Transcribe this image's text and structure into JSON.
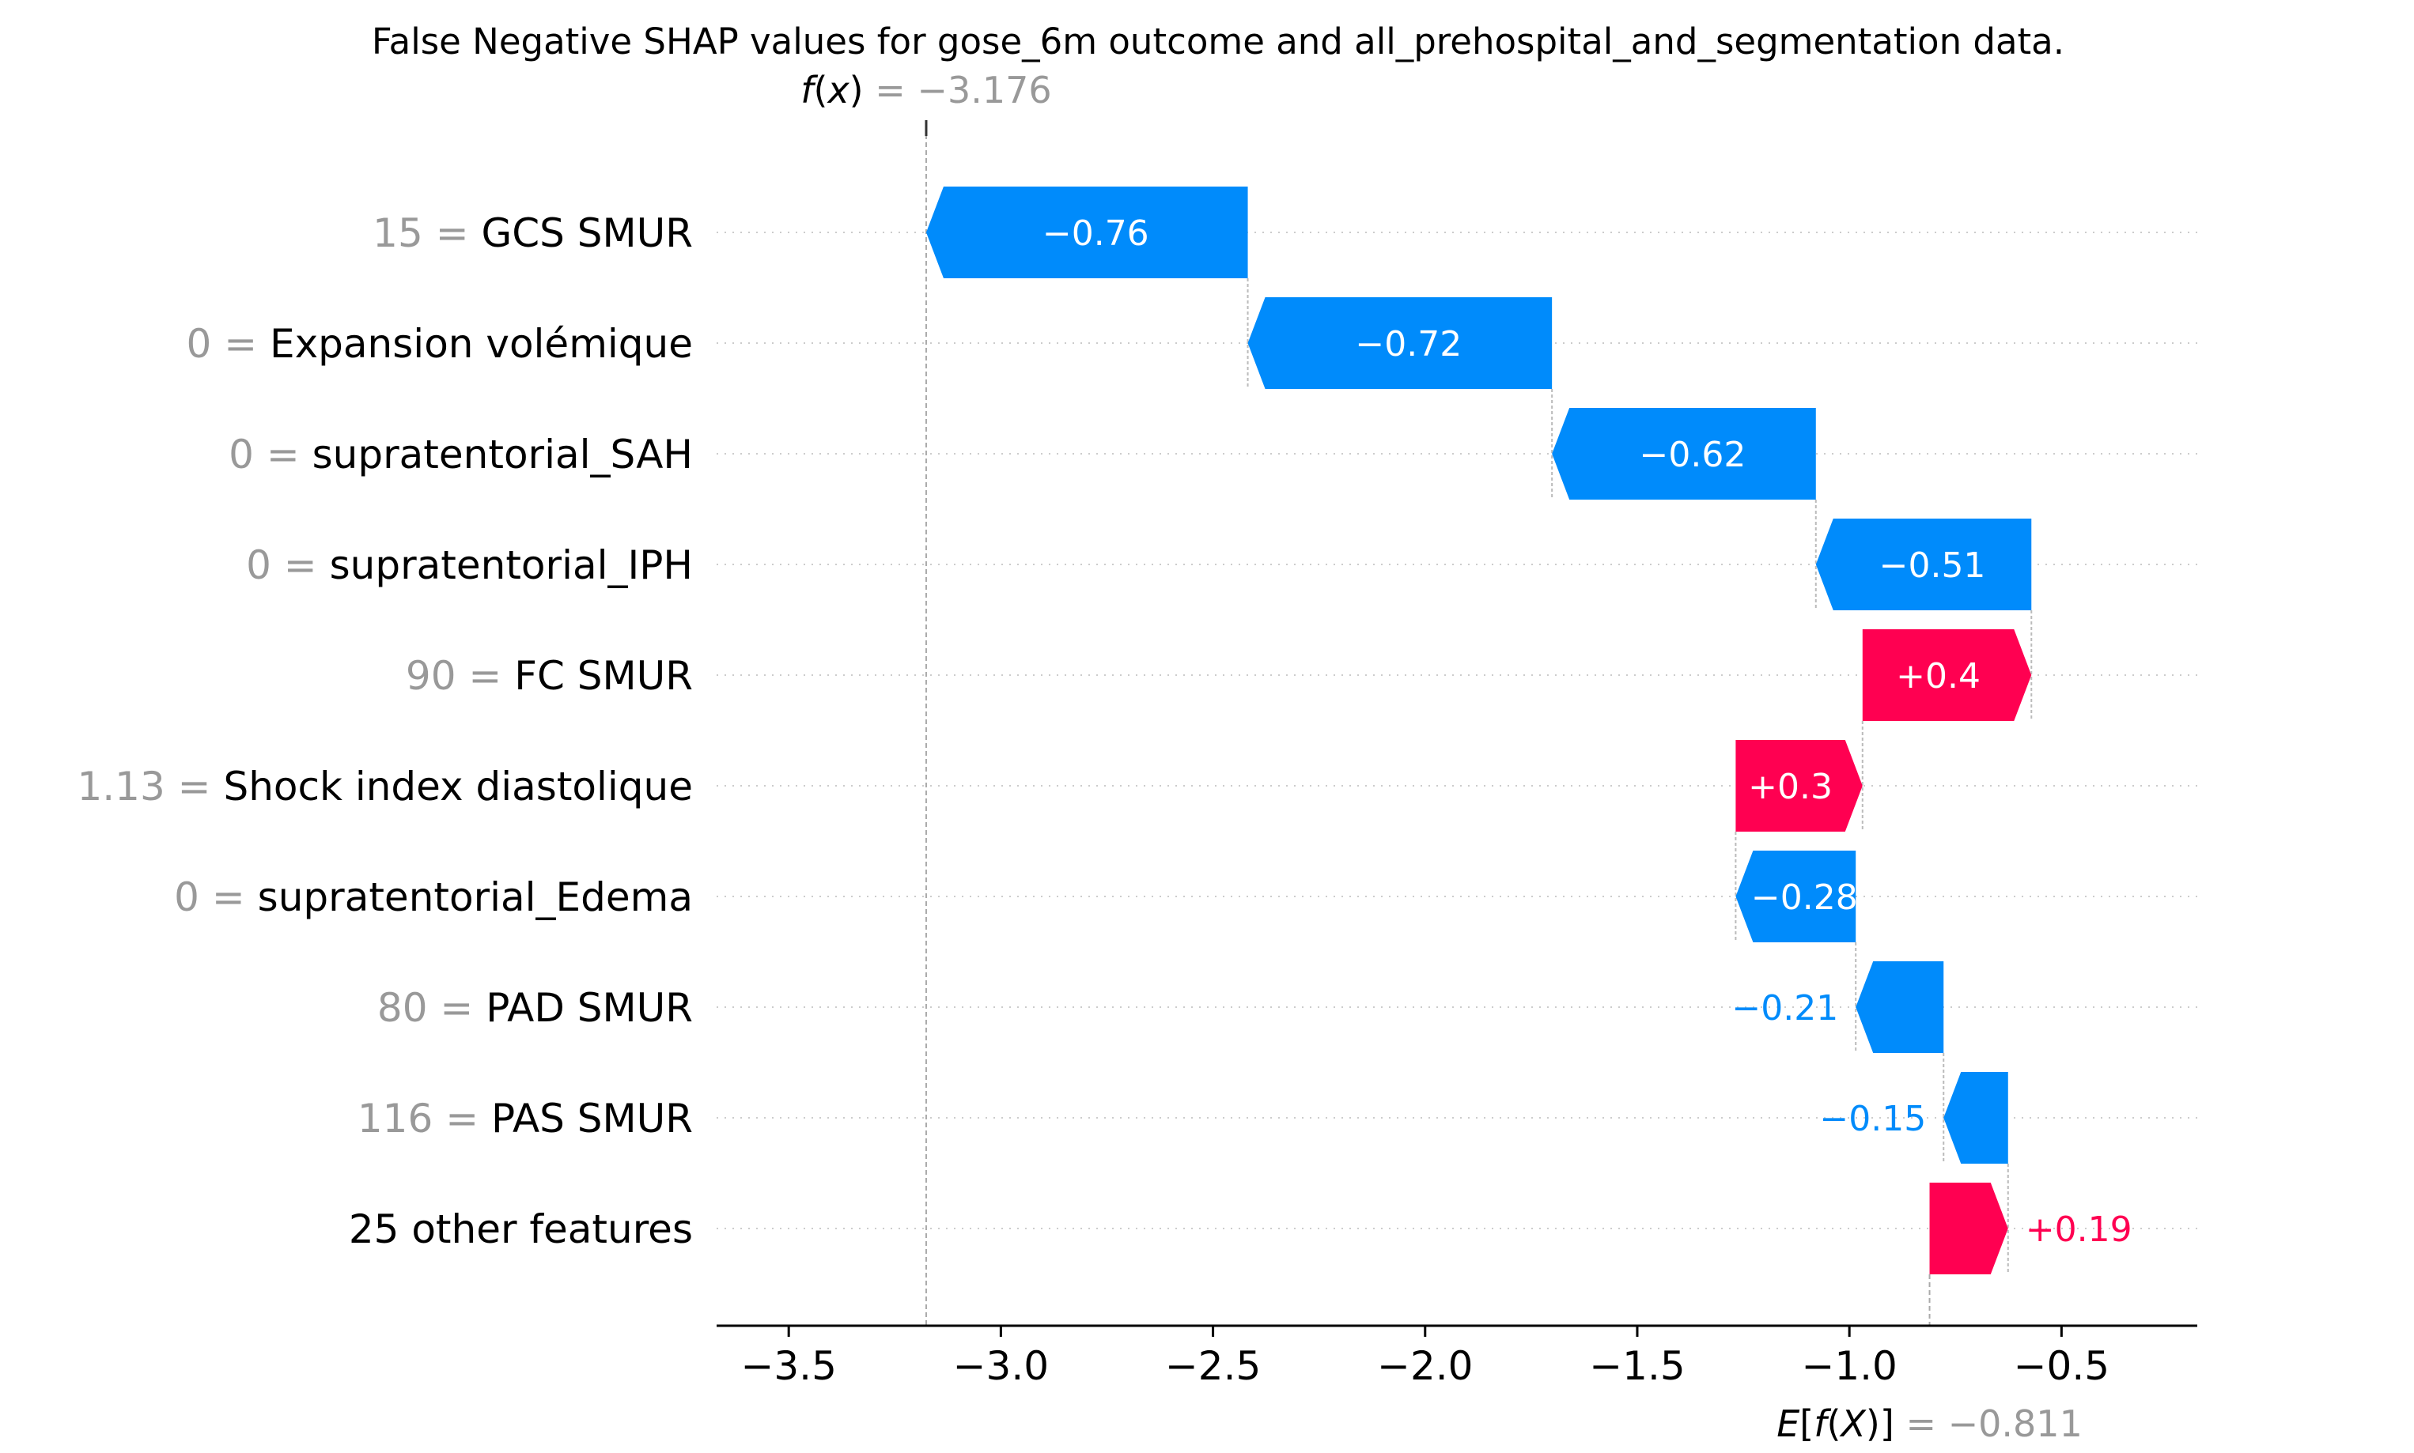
{
  "chart_data": {
    "type": "waterfall",
    "title": "False Negative SHAP values for gose_6m outcome and all_prehospital_and_segmentation data.",
    "fx": {
      "label_func": "f",
      "label_arg": "x",
      "value": "= −3.176",
      "numeric": -3.176
    },
    "efx": {
      "label_func": "E",
      "label_inner": "f",
      "label_arg": "X",
      "value": "= −0.811",
      "numeric": -0.811
    },
    "xlim": [
      -3.67,
      -0.18
    ],
    "xticks": [
      -3.5,
      -3.0,
      -2.5,
      -2.0,
      -1.5,
      -1.0,
      -0.5
    ],
    "xtick_labels": [
      "−3.5",
      "−3.0",
      "−2.5",
      "−2.0",
      "−1.5",
      "−1.0",
      "−0.5"
    ],
    "features": [
      {
        "value": "15",
        "name": "GCS SMUR ",
        "shap": -0.76,
        "label": "−0.76",
        "start": -2.418,
        "end": -3.176
      },
      {
        "value": "0",
        "name": "Expansion volémique",
        "shap": -0.72,
        "label": "−0.72",
        "start": -1.701,
        "end": -2.418
      },
      {
        "value": "0",
        "name": "supratentorial_SAH",
        "shap": -0.62,
        "label": "−0.62",
        "start": -1.079,
        "end": -1.701
      },
      {
        "value": "0",
        "name": "supratentorial_IPH",
        "shap": -0.51,
        "label": "−0.51",
        "start": -0.571,
        "end": -1.079
      },
      {
        "value": "90",
        "name": "FC SMUR ",
        "shap": 0.4,
        "label": "+0.4",
        "start": -0.969,
        "end": -0.571
      },
      {
        "value": "1.13",
        "name": "Shock index diastolique",
        "shap": 0.3,
        "label": "+0.3",
        "start": -1.268,
        "end": -0.969
      },
      {
        "value": "0",
        "name": "supratentorial_Edema",
        "shap": -0.28,
        "label": "−0.28",
        "start": -0.985,
        "end": -1.268
      },
      {
        "value": "80",
        "name": "PAD  SMUR ",
        "shap": -0.21,
        "label": "−0.21",
        "start": -0.778,
        "end": -0.985
      },
      {
        "value": "116",
        "name": "PAS  SMUR ",
        "shap": -0.15,
        "label": "−0.15",
        "start": -0.626,
        "end": -0.778
      },
      {
        "value": "",
        "name": "25 other features",
        "shap": 0.19,
        "label": "+0.19",
        "start": -0.811,
        "end": -0.626
      }
    ],
    "colors": {
      "negative": "#008bfb",
      "positive": "#ff0051",
      "value_gray": "#999999",
      "text": "#000000"
    }
  }
}
